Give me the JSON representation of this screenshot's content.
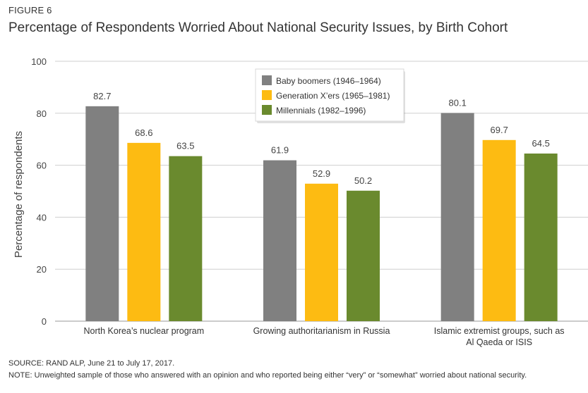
{
  "figure_label": "FIGURE 6",
  "source": "SOURCE: RAND ALP, June 21 to July 17, 2017.",
  "note": "NOTE: Unweighted sample of those who answered with an opinion and who reported being either “very” or “somewhat” worried about national security.",
  "chart_data": {
    "type": "bar",
    "title": "Percentage of Respondents Worried About National Security Issues, by Birth Cohort",
    "xlabel": "",
    "ylabel": "Percentage of respondents",
    "ylim": [
      0,
      100
    ],
    "yticks": [
      0,
      20,
      40,
      60,
      80,
      100
    ],
    "grid": true,
    "legend_position": "top-center",
    "categories": [
      [
        "North Korea’s nuclear program"
      ],
      [
        "Growing authoritarianism in Russia"
      ],
      [
        "Islamic extremist groups, such as",
        "Al Qaeda or ISIS"
      ]
    ],
    "series": [
      {
        "name": "Baby boomers (1946–1964)",
        "color": "#808080",
        "values": [
          82.7,
          61.9,
          80.1
        ]
      },
      {
        "name": "Generation X’ers (1965–1981)",
        "color": "#FDBB12",
        "values": [
          68.6,
          52.9,
          69.7
        ]
      },
      {
        "name": "Millennials (1982–1996)",
        "color": "#6A8A2E",
        "values": [
          63.5,
          50.2,
          64.5
        ]
      }
    ]
  }
}
